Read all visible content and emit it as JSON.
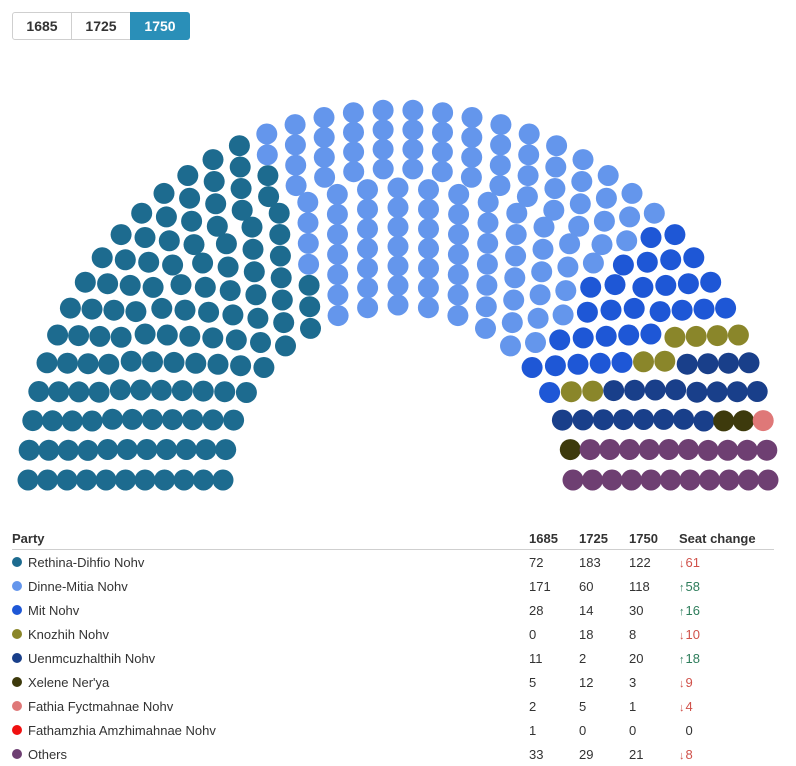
{
  "years": [
    "1685",
    "1725",
    "1750"
  ],
  "active_year": "1750",
  "table": {
    "headers": {
      "party": "Party",
      "y1": "1685",
      "y2": "1725",
      "y3": "1750",
      "change": "Seat change"
    },
    "rows": [
      {
        "party": "Rethina-Dihfio Nohv",
        "color": "#1d6b8f",
        "y1": "72",
        "y2": "183",
        "y3": "122",
        "dir": "down",
        "change": "61"
      },
      {
        "party": "Dinne-Mitia Nohv",
        "color": "#6496ec",
        "y1": "171",
        "y2": "60",
        "y3": "118",
        "dir": "up",
        "change": "58"
      },
      {
        "party": "Mit Nohv",
        "color": "#1e57d6",
        "y1": "28",
        "y2": "14",
        "y3": "30",
        "dir": "up",
        "change": "16"
      },
      {
        "party": "Knozhih Nohv",
        "color": "#8a862a",
        "y1": "0",
        "y2": "18",
        "y3": "8",
        "dir": "down",
        "change": "10"
      },
      {
        "party": "Uenmcuzhalthih Nohv",
        "color": "#193f8a",
        "y1": "11",
        "y2": "2",
        "y3": "20",
        "dir": "up",
        "change": "18"
      },
      {
        "party": "Xelene Ner'ya",
        "color": "#3d3a0c",
        "y1": "5",
        "y2": "12",
        "y3": "3",
        "dir": "down",
        "change": "9"
      },
      {
        "party": "Fathia Fyctmahnae Nohv",
        "color": "#df7878",
        "y1": "2",
        "y2": "5",
        "y3": "1",
        "dir": "down",
        "change": "4"
      },
      {
        "party": "Fathamzhia Amzhimahnae Nohv",
        "color": "#f01010",
        "y1": "1",
        "y2": "0",
        "y3": "0",
        "dir": "none",
        "change": "0"
      },
      {
        "party": "Others",
        "color": "#6e3f72",
        "y1": "33",
        "y2": "29",
        "y3": "21",
        "dir": "down",
        "change": "8"
      }
    ]
  },
  "chart_data": {
    "type": "parliament",
    "year": "1750",
    "total_seats": 323,
    "series": [
      {
        "name": "Rethina-Dihfio Nohv",
        "seats": 122,
        "color": "#1d6b8f"
      },
      {
        "name": "Dinne-Mitia Nohv",
        "seats": 118,
        "color": "#6496ec"
      },
      {
        "name": "Mit Nohv",
        "seats": 30,
        "color": "#1e57d6"
      },
      {
        "name": "Knozhih Nohv",
        "seats": 8,
        "color": "#8a862a"
      },
      {
        "name": "Uenmcuzhalthih Nohv",
        "seats": 20,
        "color": "#193f8a"
      },
      {
        "name": "Xelene Ner'ya",
        "seats": 3,
        "color": "#3d3a0c"
      },
      {
        "name": "Fathia Fyctmahnae Nohv",
        "seats": 1,
        "color": "#df7878"
      },
      {
        "name": "Fathamzhia Amzhimahnae Nohv",
        "seats": 0,
        "color": "#f01010"
      },
      {
        "name": "Others",
        "seats": 21,
        "color": "#6e3f72"
      }
    ]
  }
}
